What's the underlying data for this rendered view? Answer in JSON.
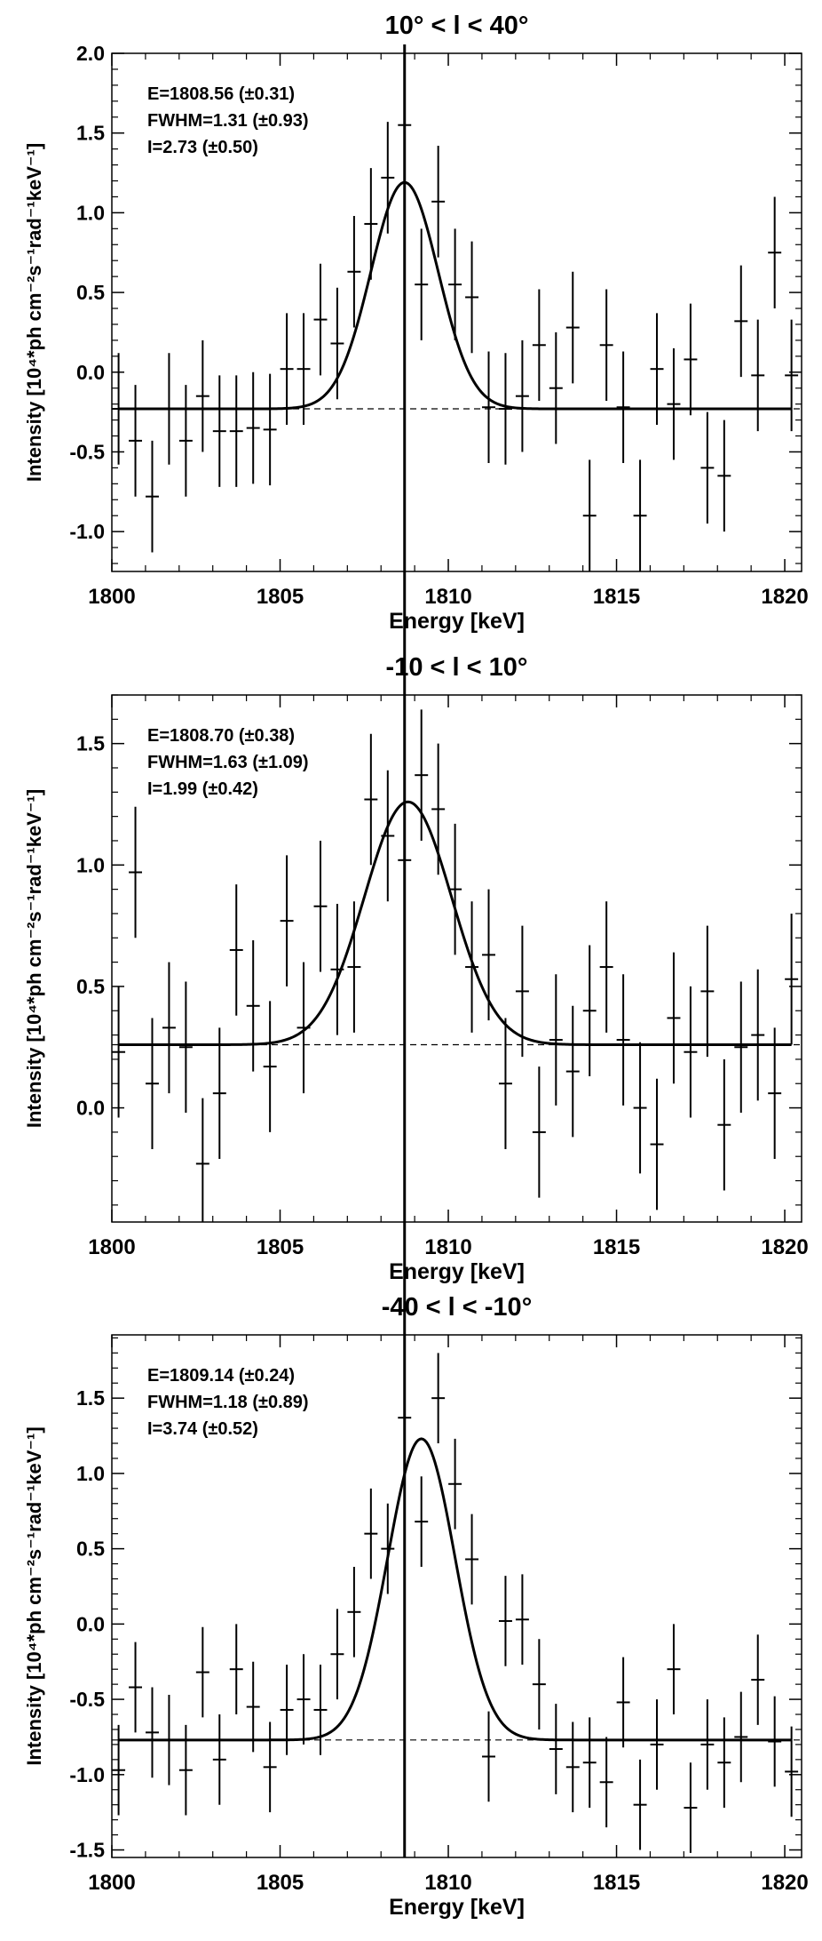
{
  "chart_data": [
    {
      "type": "scatter",
      "title": "10° < l < 40°",
      "xlabel": "Energy [keV]",
      "ylabel": "Intensity [10⁴*ph cm⁻²s⁻¹rad⁻¹keV⁻¹]",
      "xlim": [
        1800,
        1820.5
      ],
      "ylim": [
        -1.25,
        2.0
      ],
      "xticks": [
        1800,
        1805,
        1810,
        1815,
        1820
      ],
      "yticks": [
        -1.0,
        -0.5,
        0.0,
        0.5,
        1.0,
        1.5,
        2.0
      ],
      "grid": false,
      "line_energy": 1808.7,
      "annotations": [
        "E=1808.56 (±0.31)",
        "FWHM=1.31 (±0.93)",
        "I=2.73 (±0.50)"
      ],
      "fit": {
        "center": 1808.7,
        "sigma": 1.0,
        "amplitude": 1.42,
        "baseline": -0.23
      },
      "points": [
        {
          "x": 1800.2,
          "y": -0.23,
          "err": 0.35
        },
        {
          "x": 1800.7,
          "y": -0.43,
          "err": 0.35
        },
        {
          "x": 1801.2,
          "y": -0.78,
          "err": 0.35
        },
        {
          "x": 1801.7,
          "y": -0.23,
          "err": 0.35
        },
        {
          "x": 1802.2,
          "y": -0.43,
          "err": 0.35
        },
        {
          "x": 1802.7,
          "y": -0.15,
          "err": 0.35
        },
        {
          "x": 1803.2,
          "y": -0.37,
          "err": 0.35
        },
        {
          "x": 1803.7,
          "y": -0.37,
          "err": 0.35
        },
        {
          "x": 1804.2,
          "y": -0.35,
          "err": 0.35
        },
        {
          "x": 1804.7,
          "y": -0.36,
          "err": 0.35
        },
        {
          "x": 1805.2,
          "y": 0.02,
          "err": 0.35
        },
        {
          "x": 1805.7,
          "y": 0.02,
          "err": 0.35
        },
        {
          "x": 1806.2,
          "y": 0.33,
          "err": 0.35
        },
        {
          "x": 1806.7,
          "y": 0.18,
          "err": 0.35
        },
        {
          "x": 1807.2,
          "y": 0.63,
          "err": 0.35
        },
        {
          "x": 1807.7,
          "y": 0.93,
          "err": 0.35
        },
        {
          "x": 1808.2,
          "y": 1.22,
          "err": 0.35
        },
        {
          "x": 1808.7,
          "y": 1.55,
          "err": 0.35
        },
        {
          "x": 1809.2,
          "y": 0.55,
          "err": 0.35
        },
        {
          "x": 1809.7,
          "y": 1.07,
          "err": 0.35
        },
        {
          "x": 1810.2,
          "y": 0.55,
          "err": 0.35
        },
        {
          "x": 1810.7,
          "y": 0.47,
          "err": 0.35
        },
        {
          "x": 1811.2,
          "y": -0.22,
          "err": 0.35
        },
        {
          "x": 1811.7,
          "y": -0.23,
          "err": 0.35
        },
        {
          "x": 1812.2,
          "y": -0.15,
          "err": 0.35
        },
        {
          "x": 1812.7,
          "y": 0.17,
          "err": 0.35
        },
        {
          "x": 1813.2,
          "y": -0.1,
          "err": 0.35
        },
        {
          "x": 1813.7,
          "y": 0.28,
          "err": 0.35
        },
        {
          "x": 1814.2,
          "y": -0.9,
          "err": 0.35
        },
        {
          "x": 1814.7,
          "y": 0.17,
          "err": 0.35
        },
        {
          "x": 1815.2,
          "y": -0.22,
          "err": 0.35
        },
        {
          "x": 1815.7,
          "y": -0.9,
          "err": 0.35
        },
        {
          "x": 1816.2,
          "y": 0.02,
          "err": 0.35
        },
        {
          "x": 1816.7,
          "y": -0.2,
          "err": 0.35
        },
        {
          "x": 1817.2,
          "y": 0.08,
          "err": 0.35
        },
        {
          "x": 1817.7,
          "y": -0.6,
          "err": 0.35
        },
        {
          "x": 1818.2,
          "y": -0.65,
          "err": 0.35
        },
        {
          "x": 1818.7,
          "y": 0.32,
          "err": 0.35
        },
        {
          "x": 1819.2,
          "y": -0.02,
          "err": 0.35
        },
        {
          "x": 1819.7,
          "y": 0.75,
          "err": 0.35
        },
        {
          "x": 1820.2,
          "y": -0.02,
          "err": 0.35
        }
      ]
    },
    {
      "type": "scatter",
      "title": "-10 < l < 10°",
      "xlabel": "Energy [keV]",
      "ylabel": "Intensity [10⁴*ph cm⁻²s⁻¹rad⁻¹keV⁻¹]",
      "xlim": [
        1800,
        1820.5
      ],
      "ylim": [
        -0.47,
        1.7
      ],
      "xticks": [
        1800,
        1805,
        1810,
        1815,
        1820
      ],
      "yticks": [
        0.0,
        0.5,
        1.0,
        1.5
      ],
      "grid": false,
      "line_energy": 1808.7,
      "annotations": [
        "E=1808.70 (±0.38)",
        "FWHM=1.63 (±1.09)",
        "I=1.99 (±0.42)"
      ],
      "fit": {
        "center": 1808.8,
        "sigma": 1.3,
        "amplitude": 1.0,
        "baseline": 0.26
      },
      "points": [
        {
          "x": 1800.2,
          "y": 0.23,
          "err": 0.27
        },
        {
          "x": 1800.7,
          "y": 0.97,
          "err": 0.27
        },
        {
          "x": 1801.2,
          "y": 0.1,
          "err": 0.27
        },
        {
          "x": 1801.7,
          "y": 0.33,
          "err": 0.27
        },
        {
          "x": 1802.2,
          "y": 0.25,
          "err": 0.27
        },
        {
          "x": 1802.7,
          "y": -0.23,
          "err": 0.27
        },
        {
          "x": 1803.2,
          "y": 0.06,
          "err": 0.27
        },
        {
          "x": 1803.7,
          "y": 0.65,
          "err": 0.27
        },
        {
          "x": 1804.2,
          "y": 0.42,
          "err": 0.27
        },
        {
          "x": 1804.7,
          "y": 0.17,
          "err": 0.27
        },
        {
          "x": 1805.2,
          "y": 0.77,
          "err": 0.27
        },
        {
          "x": 1805.7,
          "y": 0.33,
          "err": 0.27
        },
        {
          "x": 1806.2,
          "y": 0.83,
          "err": 0.27
        },
        {
          "x": 1806.7,
          "y": 0.57,
          "err": 0.27
        },
        {
          "x": 1807.2,
          "y": 0.58,
          "err": 0.27
        },
        {
          "x": 1807.7,
          "y": 1.27,
          "err": 0.27
        },
        {
          "x": 1808.2,
          "y": 1.12,
          "err": 0.27
        },
        {
          "x": 1808.7,
          "y": 1.02,
          "err": 0.27
        },
        {
          "x": 1809.2,
          "y": 1.37,
          "err": 0.27
        },
        {
          "x": 1809.7,
          "y": 1.23,
          "err": 0.27
        },
        {
          "x": 1810.2,
          "y": 0.9,
          "err": 0.27
        },
        {
          "x": 1810.7,
          "y": 0.58,
          "err": 0.27
        },
        {
          "x": 1811.2,
          "y": 0.63,
          "err": 0.27
        },
        {
          "x": 1811.7,
          "y": 0.1,
          "err": 0.27
        },
        {
          "x": 1812.2,
          "y": 0.48,
          "err": 0.27
        },
        {
          "x": 1812.7,
          "y": -0.1,
          "err": 0.27
        },
        {
          "x": 1813.2,
          "y": 0.28,
          "err": 0.27
        },
        {
          "x": 1813.7,
          "y": 0.15,
          "err": 0.27
        },
        {
          "x": 1814.2,
          "y": 0.4,
          "err": 0.27
        },
        {
          "x": 1814.7,
          "y": 0.58,
          "err": 0.27
        },
        {
          "x": 1815.2,
          "y": 0.28,
          "err": 0.27
        },
        {
          "x": 1815.7,
          "y": 0.0,
          "err": 0.27
        },
        {
          "x": 1816.2,
          "y": -0.15,
          "err": 0.27
        },
        {
          "x": 1816.7,
          "y": 0.37,
          "err": 0.27
        },
        {
          "x": 1817.2,
          "y": 0.23,
          "err": 0.27
        },
        {
          "x": 1817.7,
          "y": 0.48,
          "err": 0.27
        },
        {
          "x": 1818.2,
          "y": -0.07,
          "err": 0.27
        },
        {
          "x": 1818.7,
          "y": 0.25,
          "err": 0.27
        },
        {
          "x": 1819.2,
          "y": 0.3,
          "err": 0.27
        },
        {
          "x": 1819.7,
          "y": 0.06,
          "err": 0.27
        },
        {
          "x": 1820.2,
          "y": 0.53,
          "err": 0.27
        }
      ]
    },
    {
      "type": "scatter",
      "title": "-40 < l < -10°",
      "xlabel": "Energy [keV]",
      "ylabel": "Intensity [10⁴*ph cm⁻²s⁻¹rad⁻¹keV⁻¹]",
      "xlim": [
        1800,
        1820.5
      ],
      "ylim": [
        -1.55,
        1.92
      ],
      "xticks": [
        1800,
        1805,
        1810,
        1815,
        1820
      ],
      "yticks": [
        -1.5,
        -1.0,
        -0.5,
        0.0,
        0.5,
        1.0,
        1.5
      ],
      "grid": false,
      "line_energy": 1808.7,
      "annotations": [
        "E=1809.14 (±0.24)",
        "FWHM=1.18 (±0.89)",
        "I=3.74 (±0.52)"
      ],
      "fit": {
        "center": 1809.2,
        "sigma": 1.0,
        "amplitude": 2.0,
        "baseline": -0.77
      },
      "points": [
        {
          "x": 1800.2,
          "y": -0.97,
          "err": 0.3
        },
        {
          "x": 1800.7,
          "y": -0.42,
          "err": 0.3
        },
        {
          "x": 1801.2,
          "y": -0.72,
          "err": 0.3
        },
        {
          "x": 1801.7,
          "y": -0.77,
          "err": 0.3
        },
        {
          "x": 1802.2,
          "y": -0.97,
          "err": 0.3
        },
        {
          "x": 1802.7,
          "y": -0.32,
          "err": 0.3
        },
        {
          "x": 1803.2,
          "y": -0.9,
          "err": 0.3
        },
        {
          "x": 1803.7,
          "y": -0.3,
          "err": 0.3
        },
        {
          "x": 1804.2,
          "y": -0.55,
          "err": 0.3
        },
        {
          "x": 1804.7,
          "y": -0.95,
          "err": 0.3
        },
        {
          "x": 1805.2,
          "y": -0.57,
          "err": 0.3
        },
        {
          "x": 1805.7,
          "y": -0.5,
          "err": 0.3
        },
        {
          "x": 1806.2,
          "y": -0.57,
          "err": 0.3
        },
        {
          "x": 1806.7,
          "y": -0.2,
          "err": 0.3
        },
        {
          "x": 1807.2,
          "y": 0.08,
          "err": 0.3
        },
        {
          "x": 1807.7,
          "y": 0.6,
          "err": 0.3
        },
        {
          "x": 1808.2,
          "y": 0.5,
          "err": 0.3
        },
        {
          "x": 1808.7,
          "y": 1.37,
          "err": 0.3
        },
        {
          "x": 1809.2,
          "y": 0.68,
          "err": 0.3
        },
        {
          "x": 1809.7,
          "y": 1.5,
          "err": 0.3
        },
        {
          "x": 1810.2,
          "y": 0.93,
          "err": 0.3
        },
        {
          "x": 1810.7,
          "y": 0.43,
          "err": 0.3
        },
        {
          "x": 1811.2,
          "y": -0.88,
          "err": 0.3
        },
        {
          "x": 1811.7,
          "y": 0.02,
          "err": 0.3
        },
        {
          "x": 1812.2,
          "y": 0.03,
          "err": 0.3
        },
        {
          "x": 1812.7,
          "y": -0.4,
          "err": 0.3
        },
        {
          "x": 1813.2,
          "y": -0.83,
          "err": 0.3
        },
        {
          "x": 1813.7,
          "y": -0.95,
          "err": 0.3
        },
        {
          "x": 1814.2,
          "y": -0.92,
          "err": 0.3
        },
        {
          "x": 1814.7,
          "y": -1.05,
          "err": 0.3
        },
        {
          "x": 1815.2,
          "y": -0.52,
          "err": 0.3
        },
        {
          "x": 1815.7,
          "y": -1.2,
          "err": 0.3
        },
        {
          "x": 1816.2,
          "y": -0.8,
          "err": 0.3
        },
        {
          "x": 1816.7,
          "y": -0.3,
          "err": 0.3
        },
        {
          "x": 1817.2,
          "y": -1.22,
          "err": 0.3
        },
        {
          "x": 1817.7,
          "y": -0.8,
          "err": 0.3
        },
        {
          "x": 1818.2,
          "y": -0.92,
          "err": 0.3
        },
        {
          "x": 1818.7,
          "y": -0.75,
          "err": 0.3
        },
        {
          "x": 1819.2,
          "y": -0.37,
          "err": 0.3
        },
        {
          "x": 1819.7,
          "y": -0.78,
          "err": 0.3
        },
        {
          "x": 1820.2,
          "y": -0.98,
          "err": 0.3
        }
      ]
    }
  ]
}
